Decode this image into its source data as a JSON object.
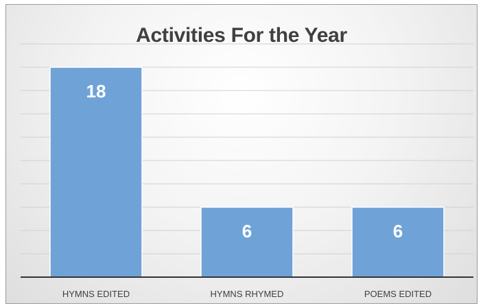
{
  "chart_data": {
    "type": "bar",
    "title": "Activities For the Year",
    "categories": [
      "HYMNS EDITED",
      "HYMNS RHYMED",
      "POEMS EDITED"
    ],
    "values": [
      18,
      6,
      6
    ],
    "data_labels": [
      "18",
      "6",
      "6"
    ],
    "ylim": [
      0,
      20
    ],
    "grid": true,
    "legend": "none",
    "bar_color": "#6fa3d8",
    "bar_stroke": "#ffffff"
  }
}
